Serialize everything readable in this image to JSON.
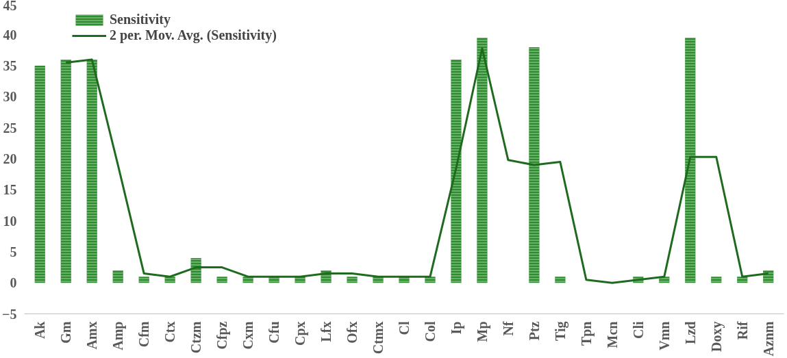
{
  "chart_data": {
    "type": "bar",
    "categories": [
      "Ak",
      "Gm",
      "Amx",
      "Amp",
      "Cfm",
      "Ctx",
      "Ctzm",
      "Cfpz",
      "Cxm",
      "Cfu",
      "Cpx",
      "Lfx",
      "Ofx",
      "Ctmx",
      "Cl",
      "Col",
      "Ip",
      "Mp",
      "Nf",
      "Ptz",
      "Tig",
      "Tpn",
      "Mcn",
      "Cli",
      "Vmn",
      "Lzd",
      "Doxy",
      "Rif",
      "Aznm"
    ],
    "series": [
      {
        "name": "Sensitivity",
        "color": "#2e8b2e",
        "values": [
          35,
          36,
          36,
          2,
          1,
          1,
          4,
          1,
          1,
          1,
          1,
          2,
          1,
          1,
          1,
          1,
          36,
          39.5,
          0,
          38,
          1,
          0,
          0,
          1,
          1,
          39.5,
          1,
          1,
          2
        ]
      },
      {
        "name": "2 per. Mov. Avg. (Sensitivity)",
        "type": "line",
        "color": "#1e6b1e",
        "values": [
          null,
          35.5,
          36,
          19,
          1.5,
          1,
          2.5,
          2.5,
          1,
          1,
          1,
          1.5,
          1.5,
          1,
          1,
          1,
          18.5,
          37.8,
          19.8,
          19,
          19.5,
          0.5,
          0,
          0.5,
          1,
          20.3,
          20.3,
          1,
          1.5
        ]
      }
    ],
    "ylim": [
      -5,
      45
    ],
    "yticks": [
      -5,
      0,
      5,
      10,
      15,
      20,
      25,
      30,
      35,
      40,
      45
    ],
    "grid": false,
    "legend": "top left"
  }
}
